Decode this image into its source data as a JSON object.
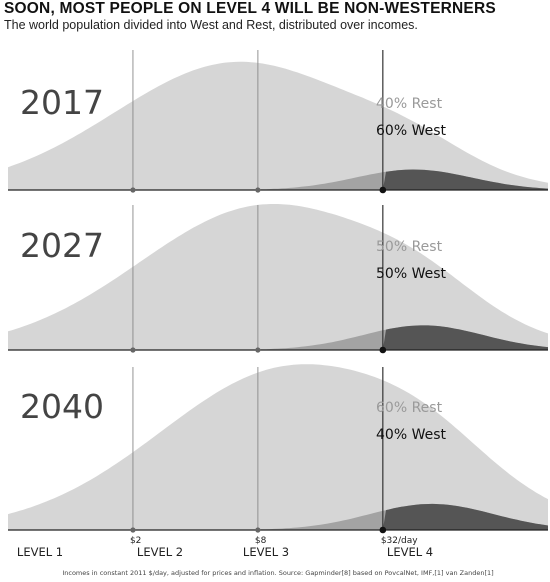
{
  "title": "SOON, MOST PEOPLE ON LEVEL 4 WILL BE NON-WESTERNERS",
  "subtitle": "The world population divided into West and Rest, distributed over incomes.",
  "source_note": "Incomes in constant 2011 $/day, adjusted for prices and inflation. Source: Gapminder[8] based on PovcalNet, IMF,[1] van Zanden[1]",
  "colors": {
    "rest_fill": "#d6d6d6",
    "west_overlap_fill": "#a3a3a3",
    "west_fill_level4": "#555555",
    "axis": "#222222",
    "threshold_line": "#888888"
  },
  "chart_data": {
    "type": "area",
    "x_scale": "log",
    "x_unit": "$/day",
    "xlim": [
      0.5,
      200
    ],
    "thresholds": [
      {
        "value": 2,
        "label": "$2"
      },
      {
        "value": 8,
        "label": "$8"
      },
      {
        "value": 32,
        "label": "$32/day"
      }
    ],
    "levels": [
      "LEVEL 1",
      "LEVEL 2",
      "LEVEL 3",
      "LEVEL 4"
    ],
    "panels": [
      {
        "year": "2017",
        "rest_label": "40% Rest",
        "west_label": "60% West",
        "series": [
          {
            "name": "Rest",
            "peak_income": 6.5,
            "spread": 0.6,
            "peak_height": 1.0
          },
          {
            "name": "West",
            "peak_income": 45,
            "spread": 0.28,
            "peak_height": 0.16
          }
        ]
      },
      {
        "year": "2027",
        "rest_label": "50% Rest",
        "west_label": "50% West",
        "series": [
          {
            "name": "Rest",
            "peak_income": 9,
            "spread": 0.62,
            "peak_height": 1.0
          },
          {
            "name": "West",
            "peak_income": 50,
            "spread": 0.29,
            "peak_height": 0.17
          }
        ]
      },
      {
        "year": "2040",
        "rest_label": "60% Rest",
        "west_label": "40% West",
        "series": [
          {
            "name": "Rest",
            "peak_income": 12,
            "spread": 0.64,
            "peak_height": 1.0
          },
          {
            "name": "West",
            "peak_income": 55,
            "spread": 0.3,
            "peak_height": 0.16
          }
        ]
      }
    ]
  }
}
